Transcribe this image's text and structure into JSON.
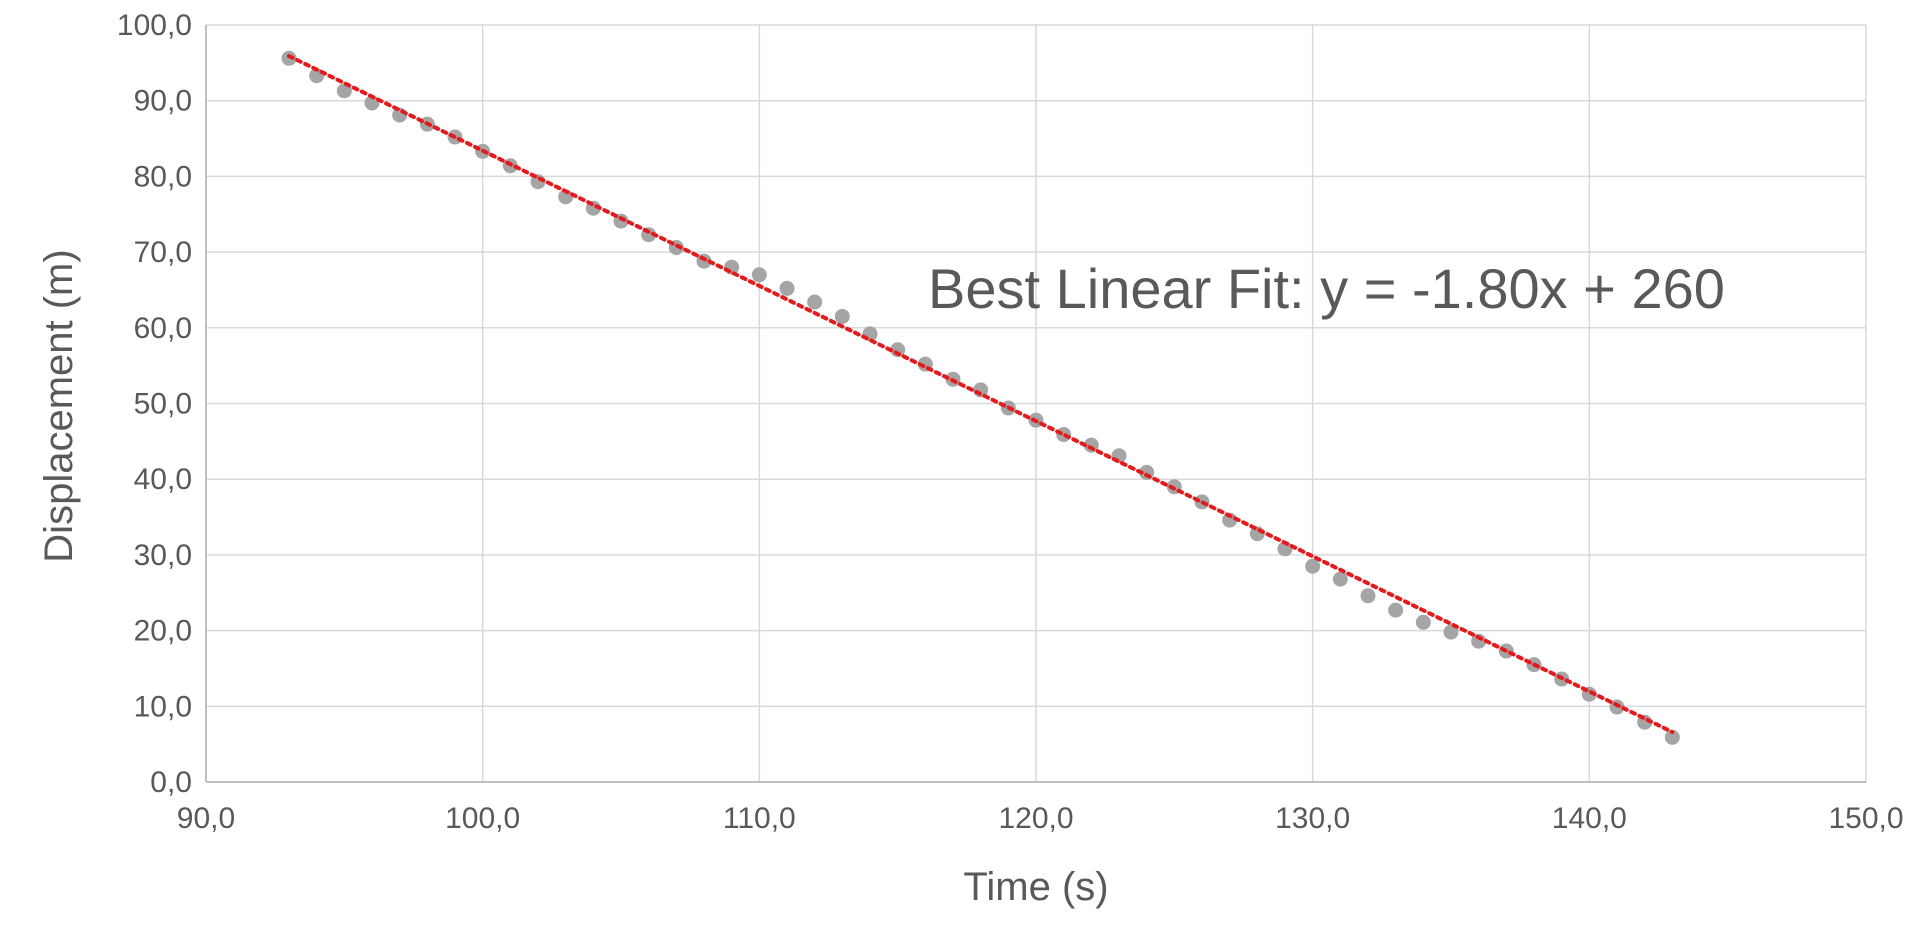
{
  "chart_data": {
    "type": "scatter",
    "title": "",
    "xlabel": "Time (s)",
    "ylabel": "Displacement (m)",
    "xlim": [
      90,
      150
    ],
    "ylim": [
      0,
      100
    ],
    "xticks": [
      90,
      100,
      110,
      120,
      130,
      140,
      150
    ],
    "yticks": [
      0,
      10,
      20,
      30,
      40,
      50,
      60,
      70,
      80,
      90,
      100
    ],
    "xtick_labels": [
      "90,0",
      "100,0",
      "110,0",
      "120,0",
      "130,0",
      "140,0",
      "150,0"
    ],
    "ytick_labels": [
      "0,0",
      "10,0",
      "20,0",
      "30,0",
      "40,0",
      "50,0",
      "60,0",
      "70,0",
      "80,0",
      "90,0",
      "100,0"
    ],
    "grid": true,
    "legend": "none",
    "series": [
      {
        "color": "#a5a5a5",
        "x": [
          93,
          94,
          95,
          96,
          97,
          98,
          99,
          100,
          101,
          102,
          103,
          104,
          105,
          106,
          107,
          108,
          109,
          110,
          111,
          112,
          113,
          114,
          115,
          116,
          117,
          118,
          119,
          120,
          121,
          122,
          123,
          124,
          125,
          126,
          127,
          128,
          129,
          130,
          131,
          132,
          133,
          134,
          135,
          136,
          137,
          138,
          139,
          140,
          141,
          142,
          143
        ],
        "y": [
          95.6,
          93.3,
          91.3,
          89.7,
          88.1,
          86.9,
          85.2,
          83.3,
          81.4,
          79.3,
          77.3,
          75.8,
          74.1,
          72.3,
          70.6,
          68.8,
          68.0,
          67.0,
          65.2,
          63.4,
          61.5,
          59.2,
          57.1,
          55.2,
          53.2,
          51.8,
          49.4,
          47.8,
          45.9,
          44.5,
          43.1,
          40.9,
          39.0,
          37.0,
          34.6,
          32.8,
          30.8,
          28.5,
          26.8,
          24.6,
          22.7,
          21.1,
          19.8,
          18.6,
          17.3,
          15.5,
          13.6,
          11.6,
          9.9,
          7.9,
          5.9
        ]
      }
    ],
    "trendline": {
      "type": "linear",
      "style": "dotted",
      "color": "#e41a1c",
      "x": [
        93,
        143
      ],
      "y": [
        95.9,
        6.6
      ]
    },
    "annotations": [
      {
        "text": "Best Linear Fit:  y = -1.80x + 260"
      }
    ]
  }
}
